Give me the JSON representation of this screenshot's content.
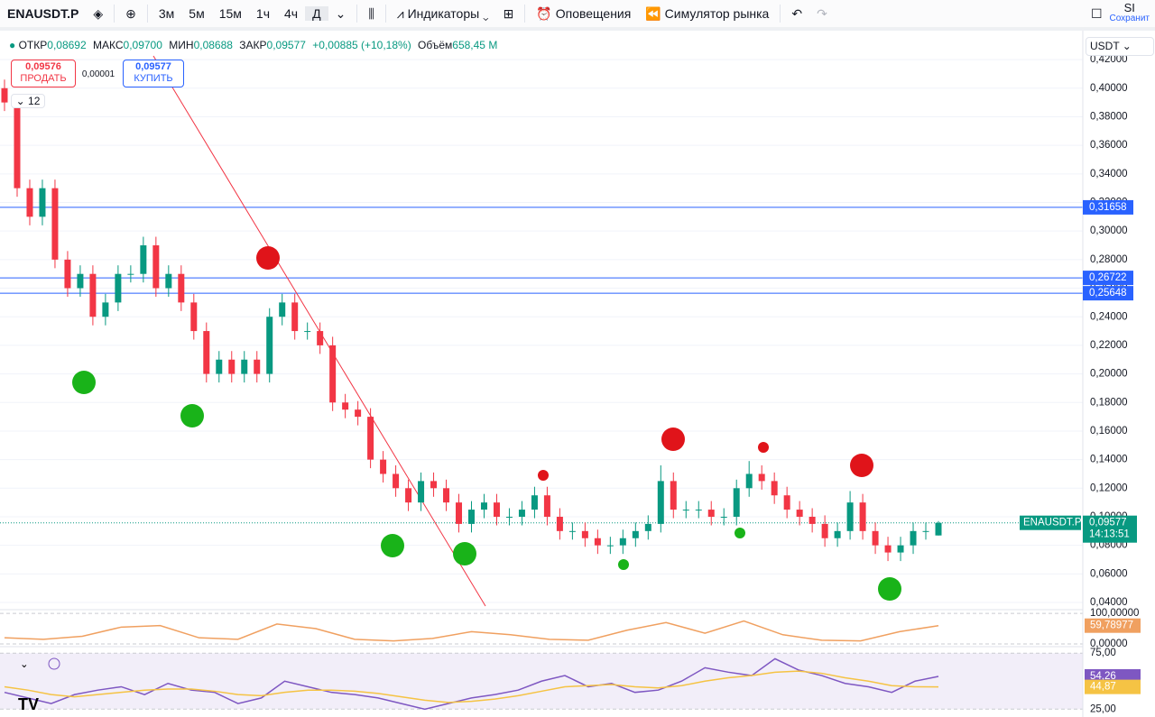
{
  "toolbar": {
    "symbol": "ENAUSDT.P",
    "intervals": [
      "3м",
      "5м",
      "15м",
      "1ч",
      "4ч",
      "Д"
    ],
    "indicators": "Индикаторы",
    "alerts": "Оповещения",
    "replay": "Симулятор рынка",
    "user": "SI",
    "save": "Сохранит"
  },
  "legend": {
    "open_label": "ОТКР",
    "open": "0,08692",
    "high_label": "МАКС",
    "high": "0,09700",
    "low_label": "МИН",
    "low": "0,08688",
    "close_label": "ЗАКР",
    "close": "0,09577",
    "change": "+0,00885 (+10,18%)",
    "volume_label": "Объём",
    "volume": "658,45 M"
  },
  "trade": {
    "sell_price": "0,09576",
    "sell": "ПРОДАТЬ",
    "spread": "0,00001",
    "buy_price": "0,09577",
    "buy": "КУПИТЬ"
  },
  "indicator_count": "12",
  "currency": "USDT",
  "chart_data": [
    {
      "type": "candlestick",
      "up_color": "#089981",
      "down_color": "#f23645",
      "open": [
        0.4,
        0.39,
        0.33,
        0.31,
        0.33,
        0.28,
        0.26,
        0.27,
        0.24,
        0.25,
        0.27,
        0.27,
        0.29,
        0.26,
        0.27,
        0.25,
        0.23,
        0.2,
        0.21,
        0.2,
        0.21,
        0.2,
        0.24,
        0.25,
        0.23,
        0.23,
        0.22,
        0.18,
        0.175,
        0.17,
        0.14,
        0.13,
        0.12,
        0.11,
        0.125,
        0.12,
        0.11,
        0.095,
        0.105,
        0.11,
        0.1,
        0.1,
        0.105,
        0.115,
        0.1,
        0.09,
        0.09,
        0.085,
        0.08,
        0.08,
        0.085,
        0.09,
        0.095,
        0.125,
        0.105,
        0.105,
        0.105,
        0.1,
        0.1,
        0.12,
        0.13,
        0.125,
        0.115,
        0.105,
        0.1,
        0.095,
        0.085,
        0.09,
        0.11,
        0.09,
        0.08,
        0.075,
        0.08,
        0.09,
        0.08692
      ],
      "high": [
        0.406,
        0.396,
        0.336,
        0.336,
        0.336,
        0.286,
        0.276,
        0.276,
        0.256,
        0.276,
        0.276,
        0.296,
        0.296,
        0.276,
        0.276,
        0.256,
        0.236,
        0.216,
        0.216,
        0.216,
        0.216,
        0.246,
        0.256,
        0.256,
        0.236,
        0.236,
        0.226,
        0.186,
        0.181,
        0.176,
        0.146,
        0.136,
        0.126,
        0.131,
        0.131,
        0.126,
        0.116,
        0.111,
        0.116,
        0.116,
        0.106,
        0.111,
        0.121,
        0.121,
        0.106,
        0.096,
        0.096,
        0.091,
        0.086,
        0.091,
        0.096,
        0.101,
        0.136,
        0.131,
        0.111,
        0.111,
        0.111,
        0.106,
        0.126,
        0.139,
        0.136,
        0.131,
        0.121,
        0.111,
        0.106,
        0.101,
        0.096,
        0.118,
        0.116,
        0.096,
        0.086,
        0.086,
        0.096,
        0.096,
        0.097
      ],
      "low": [
        0.384,
        0.324,
        0.304,
        0.304,
        0.274,
        0.254,
        0.254,
        0.234,
        0.234,
        0.244,
        0.264,
        0.264,
        0.254,
        0.254,
        0.244,
        0.224,
        0.194,
        0.194,
        0.194,
        0.194,
        0.194,
        0.194,
        0.234,
        0.224,
        0.224,
        0.214,
        0.174,
        0.169,
        0.164,
        0.134,
        0.124,
        0.114,
        0.104,
        0.104,
        0.114,
        0.104,
        0.089,
        0.089,
        0.099,
        0.094,
        0.094,
        0.094,
        0.099,
        0.094,
        0.084,
        0.084,
        0.079,
        0.074,
        0.074,
        0.074,
        0.079,
        0.084,
        0.089,
        0.099,
        0.099,
        0.099,
        0.094,
        0.094,
        0.094,
        0.114,
        0.119,
        0.109,
        0.099,
        0.094,
        0.089,
        0.079,
        0.079,
        0.084,
        0.084,
        0.074,
        0.069,
        0.069,
        0.074,
        0.084,
        0.08688
      ],
      "close": [
        0.39,
        0.33,
        0.31,
        0.33,
        0.28,
        0.26,
        0.27,
        0.24,
        0.25,
        0.27,
        0.27,
        0.29,
        0.26,
        0.27,
        0.25,
        0.23,
        0.2,
        0.21,
        0.2,
        0.21,
        0.2,
        0.24,
        0.25,
        0.23,
        0.23,
        0.22,
        0.18,
        0.175,
        0.17,
        0.14,
        0.13,
        0.12,
        0.11,
        0.125,
        0.12,
        0.11,
        0.095,
        0.105,
        0.11,
        0.1,
        0.1,
        0.105,
        0.115,
        0.1,
        0.09,
        0.09,
        0.085,
        0.08,
        0.08,
        0.085,
        0.09,
        0.095,
        0.125,
        0.105,
        0.105,
        0.105,
        0.1,
        0.1,
        0.12,
        0.13,
        0.125,
        0.115,
        0.105,
        0.1,
        0.095,
        0.085,
        0.09,
        0.11,
        0.09,
        0.08,
        0.075,
        0.08,
        0.09,
        0.09,
        0.09577
      ],
      "ylim": [
        0.0356,
        0.439
      ],
      "yticks": [
        {
          "value": 0.04,
          "label": "0,04000"
        },
        {
          "value": 0.06,
          "label": "0,06000"
        },
        {
          "value": 0.08,
          "label": "0,08000"
        },
        {
          "value": 0.1,
          "label": "0,10000"
        },
        {
          "value": 0.12,
          "label": "0,12000"
        },
        {
          "value": 0.14,
          "label": "0,14000"
        },
        {
          "value": 0.16,
          "label": "0,16000"
        },
        {
          "value": 0.18,
          "label": "0,18000"
        },
        {
          "value": 0.2,
          "label": "0,20000"
        },
        {
          "value": 0.22,
          "label": "0,22000"
        },
        {
          "value": 0.24,
          "label": "0,24000"
        },
        {
          "value": 0.26,
          "label": "0,26000"
        },
        {
          "value": 0.28,
          "label": "0,28000"
        },
        {
          "value": 0.3,
          "label": "0,30000"
        },
        {
          "value": 0.32,
          "label": "0,32000"
        },
        {
          "value": 0.34,
          "label": "0,34000"
        },
        {
          "value": 0.36,
          "label": "0,36000"
        },
        {
          "value": 0.38,
          "label": "0,38000"
        },
        {
          "value": 0.4,
          "label": "0,40000"
        },
        {
          "value": 0.42,
          "label": "0,42000"
        }
      ],
      "hlines": [
        {
          "value": 0.31658,
          "label": "0,31658"
        },
        {
          "value": 0.26722,
          "label": "0,26722"
        },
        {
          "value": 0.25648,
          "label": "0,25648"
        }
      ],
      "hline_color": "#2962ff",
      "last_price": {
        "value": 0.09577,
        "label": "0,09577",
        "symbol": "ENAUSDT.P",
        "countdown": "14:13:51"
      },
      "grid": true
    },
    {
      "type": "line",
      "series": [
        {
          "color": "#f0a060",
          "values": [
            20,
            15,
            25,
            55,
            60,
            20,
            15,
            65,
            50,
            15,
            10,
            18,
            40,
            30,
            15,
            12,
            45,
            70,
            35,
            75,
            30,
            12,
            10,
            40,
            59.78977
          ],
          "value_labels": [
            null,
            null,
            null,
            null,
            null,
            null,
            null,
            null,
            null,
            null,
            null,
            null,
            null,
            null,
            null,
            null,
            null,
            null,
            null,
            null,
            null,
            null,
            null,
            null,
            "59,78977"
          ]
        }
      ],
      "ylim": [
        -6,
        112
      ],
      "yticks": [
        {
          "value": 100,
          "label": "100,00000"
        },
        {
          "value": 0,
          "label": "0,00000"
        }
      ]
    },
    {
      "type": "line",
      "series": [
        {
          "color": "#7e57c2",
          "values": [
            40,
            35,
            30,
            38,
            42,
            45,
            38,
            48,
            42,
            40,
            30,
            35,
            50,
            45,
            40,
            38,
            35,
            30,
            25,
            30,
            35,
            38,
            42,
            50,
            55,
            45,
            48,
            40,
            42,
            50,
            62,
            58,
            55,
            70,
            60,
            55,
            48,
            45,
            40,
            50,
            54.26
          ],
          "value_labels": [
            null,
            null,
            null,
            null,
            null,
            null,
            null,
            null,
            null,
            null,
            null,
            null,
            null,
            null,
            null,
            null,
            null,
            null,
            null,
            null,
            null,
            null,
            null,
            null,
            null,
            null,
            null,
            null,
            null,
            null,
            null,
            null,
            null,
            null,
            null,
            null,
            null,
            null,
            null,
            null,
            "54,26"
          ]
        },
        {
          "color": "#f5c344",
          "values": [
            45,
            42,
            38,
            36,
            38,
            40,
            42,
            43,
            43,
            41,
            38,
            37,
            40,
            42,
            42,
            41,
            39,
            36,
            33,
            31,
            32,
            34,
            37,
            41,
            45,
            46,
            47,
            45,
            44,
            46,
            50,
            53,
            55,
            58,
            59,
            57,
            53,
            50,
            46,
            45,
            44.87
          ],
          "value_labels": [
            null,
            null,
            null,
            null,
            null,
            null,
            null,
            null,
            null,
            null,
            null,
            null,
            null,
            null,
            null,
            null,
            null,
            null,
            null,
            null,
            null,
            null,
            null,
            null,
            null,
            null,
            null,
            null,
            null,
            null,
            null,
            null,
            null,
            null,
            null,
            null,
            null,
            null,
            null,
            null,
            "44,87"
          ]
        }
      ],
      "ylim": [
        18,
        80
      ],
      "yticks": [
        {
          "value": 75,
          "label": "75,00"
        },
        {
          "value": 25,
          "label": "25,00"
        }
      ]
    }
  ]
}
